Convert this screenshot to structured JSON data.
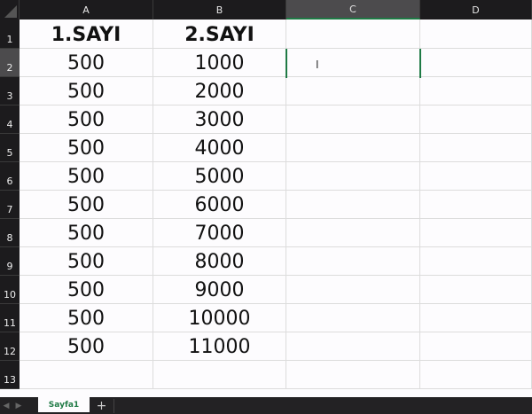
{
  "columns": [
    "A",
    "B",
    "C",
    "D"
  ],
  "rows": [
    "1",
    "2",
    "3",
    "4",
    "5",
    "6",
    "7",
    "8",
    "9",
    "10",
    "11",
    "12",
    "13"
  ],
  "cells": [
    [
      "1.SAYI",
      "2.SAYI"
    ],
    [
      "500",
      "1000"
    ],
    [
      "500",
      "2000"
    ],
    [
      "500",
      "3000"
    ],
    [
      "500",
      "4000"
    ],
    [
      "500",
      "5000"
    ],
    [
      "500",
      "6000"
    ],
    [
      "500",
      "7000"
    ],
    [
      "500",
      "8000"
    ],
    [
      "500",
      "9000"
    ],
    [
      "500",
      "10000"
    ],
    [
      "500",
      "11000"
    ]
  ],
  "selected_cell": "C2",
  "sheet_tabs": {
    "active": "Sayfa1",
    "add": "+",
    "prev": "◀",
    "next": "▶"
  },
  "colors": {
    "accent": "#1f7a45",
    "header_bg": "#1c1b1d"
  }
}
